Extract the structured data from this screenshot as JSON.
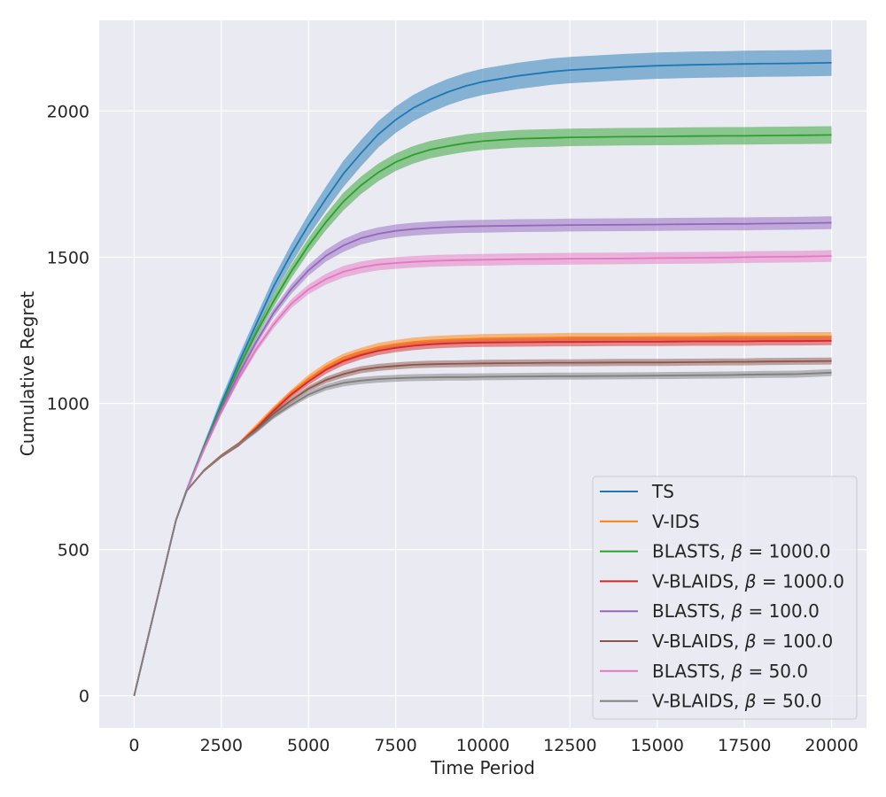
{
  "chart_data": {
    "type": "line",
    "title": "",
    "xlabel": "Time Period",
    "ylabel": "Cumulative Regret",
    "xlim": [
      -1000,
      21000
    ],
    "ylim": [
      -110,
      2310
    ],
    "xticks": [
      0,
      2500,
      5000,
      7500,
      10000,
      12500,
      15000,
      17500,
      20000
    ],
    "yticks": [
      0,
      500,
      1000,
      1500,
      2000
    ],
    "grid": true,
    "legend_position": "lower-right",
    "x": [
      0,
      1000,
      1200,
      1500,
      2000,
      2500,
      3000,
      3500,
      4000,
      4500,
      5000,
      5500,
      6000,
      6500,
      7000,
      7500,
      8000,
      8500,
      9000,
      9500,
      10000,
      11000,
      12000,
      12500,
      14000,
      15000,
      16000,
      17000,
      17500,
      18000,
      19000,
      20000
    ],
    "series": [
      {
        "name": "TS",
        "color": "#1f77b4",
        "band": 45,
        "values": [
          0,
          500,
          600,
          700,
          850,
          1000,
          1140,
          1270,
          1400,
          1510,
          1610,
          1700,
          1785,
          1855,
          1920,
          1970,
          2010,
          2040,
          2065,
          2085,
          2100,
          2120,
          2135,
          2140,
          2150,
          2155,
          2158,
          2160,
          2161,
          2162,
          2163,
          2165
        ]
      },
      {
        "name": "V-IDS",
        "color": "#ff7f0e",
        "band": 15,
        "values": [
          0,
          500,
          600,
          700,
          770,
          820,
          860,
          920,
          980,
          1035,
          1085,
          1125,
          1155,
          1175,
          1192,
          1202,
          1210,
          1215,
          1218,
          1220,
          1222,
          1224,
          1225,
          1226,
          1226,
          1227,
          1227,
          1228,
          1228,
          1228,
          1229,
          1229
        ]
      },
      {
        "name": "BLASTS, β = 1000.0",
        "color": "#2ca02c",
        "band": 30,
        "values": [
          0,
          500,
          600,
          700,
          850,
          990,
          1120,
          1240,
          1350,
          1450,
          1540,
          1620,
          1690,
          1745,
          1790,
          1825,
          1850,
          1868,
          1880,
          1890,
          1897,
          1905,
          1908,
          1910,
          1912,
          1913,
          1914,
          1915,
          1915,
          1916,
          1917,
          1918
        ]
      },
      {
        "name": "V-BLAIDS, β = 1000.0",
        "color": "#d62728",
        "band": 15,
        "values": [
          0,
          500,
          600,
          700,
          770,
          820,
          860,
          915,
          975,
          1030,
          1075,
          1115,
          1145,
          1165,
          1180,
          1190,
          1197,
          1202,
          1205,
          1207,
          1208,
          1209,
          1210,
          1210,
          1211,
          1211,
          1212,
          1212,
          1212,
          1213,
          1213,
          1214
        ]
      },
      {
        "name": "BLASTS, β = 100.0",
        "color": "#9467bd",
        "band": 22,
        "values": [
          0,
          500,
          600,
          700,
          845,
          980,
          1100,
          1210,
          1310,
          1390,
          1455,
          1505,
          1540,
          1565,
          1580,
          1590,
          1596,
          1600,
          1603,
          1605,
          1606,
          1608,
          1609,
          1610,
          1611,
          1612,
          1613,
          1614,
          1614,
          1615,
          1616,
          1618
        ]
      },
      {
        "name": "V-BLAIDS, β = 100.0",
        "color": "#8c564b",
        "band": 12,
        "values": [
          0,
          500,
          600,
          700,
          770,
          820,
          860,
          910,
          965,
          1010,
          1050,
          1080,
          1100,
          1115,
          1123,
          1128,
          1132,
          1134,
          1135,
          1136,
          1137,
          1138,
          1139,
          1139,
          1140,
          1140,
          1141,
          1142,
          1142,
          1143,
          1144,
          1145
        ]
      },
      {
        "name": "BLASTS, β = 50.0",
        "color": "#e377c2",
        "band": 20,
        "values": [
          0,
          500,
          600,
          700,
          840,
          970,
          1085,
          1185,
          1270,
          1340,
          1390,
          1425,
          1450,
          1465,
          1475,
          1480,
          1484,
          1487,
          1489,
          1490,
          1491,
          1493,
          1494,
          1495,
          1496,
          1497,
          1498,
          1499,
          1500,
          1501,
          1502,
          1504
        ]
      },
      {
        "name": "V-BLAIDS, β = 50.0",
        "color": "#7f7f7f",
        "band": 12,
        "values": [
          0,
          500,
          600,
          700,
          770,
          820,
          860,
          905,
          955,
          995,
          1030,
          1055,
          1070,
          1078,
          1083,
          1086,
          1088,
          1089,
          1090,
          1090,
          1091,
          1092,
          1093,
          1093,
          1094,
          1095,
          1096,
          1097,
          1098,
          1099,
          1100,
          1105
        ]
      }
    ],
    "legend": {
      "entries": [
        {
          "prefix": "TS",
          "beta": ""
        },
        {
          "prefix": "V-IDS",
          "beta": ""
        },
        {
          "prefix": "BLASTS, ",
          "beta": "1000.0"
        },
        {
          "prefix": "V-BLAIDS, ",
          "beta": "1000.0"
        },
        {
          "prefix": "BLASTS, ",
          "beta": "100.0"
        },
        {
          "prefix": "V-BLAIDS, ",
          "beta": "100.0"
        },
        {
          "prefix": "BLASTS, ",
          "beta": "50.0"
        },
        {
          "prefix": "V-BLAIDS, ",
          "beta": "50.0"
        }
      ],
      "beta_symbol": "β",
      "equals": " = "
    },
    "colors": {
      "background": "#eaeaf2",
      "grid": "#ffffff",
      "text": "#262626"
    }
  }
}
